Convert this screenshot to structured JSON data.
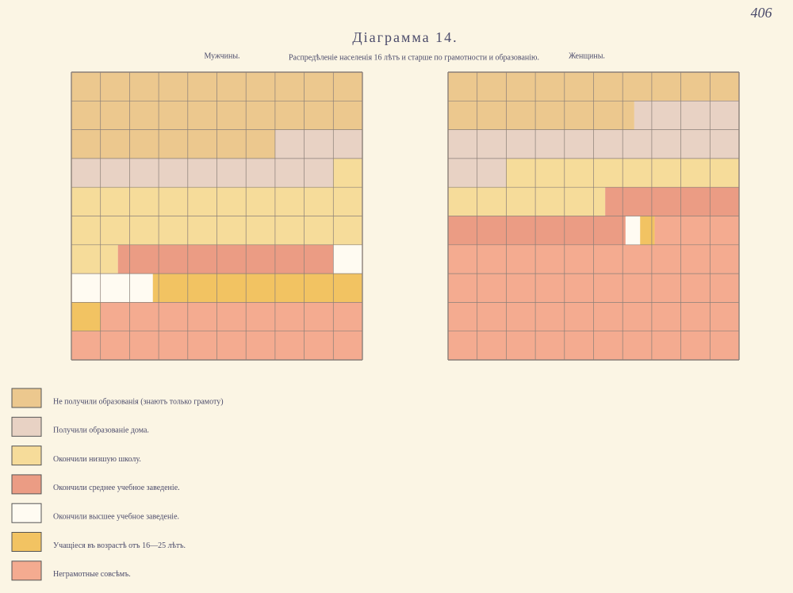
{
  "page_number": "406",
  "title": "Діаграмма 14.",
  "subtitle": "Распредѣленіе населенія 16 лѣтъ и старше по грамотности и образованію.",
  "legend": {
    "labels": [
      "Не получили образованія (знаютъ только грамоту)",
      "Получили образованіе дома.",
      "Окончили низшую школу.",
      "Окончили среднее учебное заведеніе.",
      "Окончили высшее учебное заведеніе.",
      "Учащіеся въ возрастѣ отъ 16—25 лѣтъ.",
      "Неграмотные совсѣмъ."
    ],
    "colors": [
      "#ecc88e",
      "#e8d2c4",
      "#f6dc9a",
      "#eb9c84",
      "#fffbf2",
      "#f2c362",
      "#f4ab90"
    ]
  },
  "chart_data": [
    {
      "type": "waffle",
      "title": "Мужчины.",
      "values": [
        27,
        12,
        22.6,
        7.4,
        3.8,
        8.2,
        19
      ]
    },
    {
      "type": "waffle",
      "title": "Женщины.",
      "values": [
        16.4,
        15.6,
        13.4,
        10.7,
        0.5,
        0.5,
        42.9
      ]
    }
  ]
}
